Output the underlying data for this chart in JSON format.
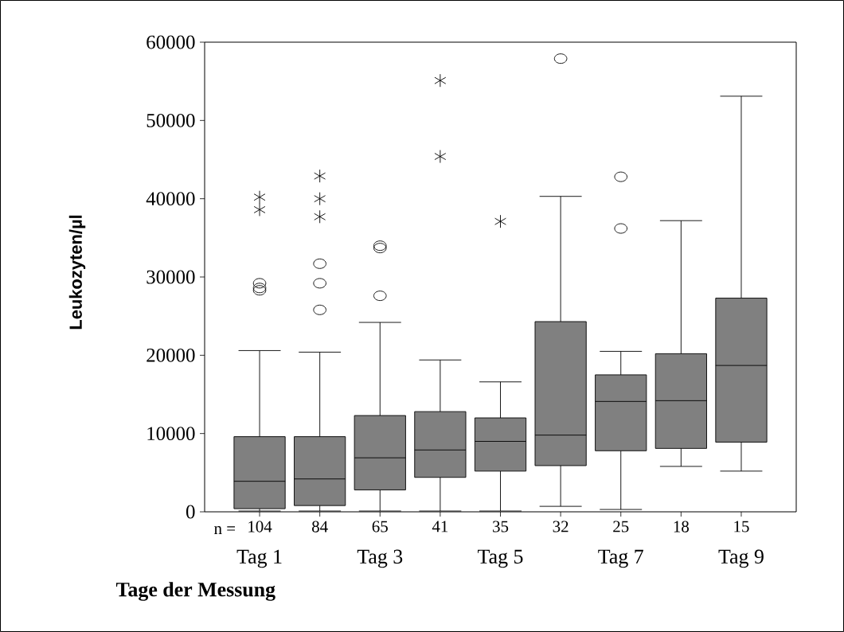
{
  "chart_data": {
    "type": "box",
    "ylabel": "Leukozyten/µl",
    "xlabel": "Tage der Messung",
    "categories": [
      "104",
      "84",
      "65",
      "41",
      "35",
      "32",
      "25",
      "18",
      "15"
    ],
    "color": "#808080",
    "marker": "circle",
    "boxes": [
      {
        "low": 100,
        "q1": 400,
        "median": 3900,
        "q3": 9600,
        "high": 20600,
        "outliers": [
          29200,
          28600,
          28300
        ]
      },
      {
        "low": 100,
        "q1": 800,
        "median": 4200,
        "q3": 9600,
        "high": 20400,
        "outliers": [
          31700,
          29200,
          25800
        ]
      },
      {
        "low": 100,
        "q1": 2800,
        "median": 6900,
        "q3": 12300,
        "high": 24200,
        "outliers": [
          34000,
          33700,
          27600
        ]
      },
      {
        "low": 100,
        "q1": 4400,
        "median": 7900,
        "q3": 12800,
        "high": 19400
      },
      {
        "low": 100,
        "q1": 5200,
        "median": 9000,
        "q3": 12000,
        "high": 16600
      },
      {
        "low": 700,
        "q1": 5900,
        "median": 9800,
        "q3": 24300,
        "high": 40300,
        "outliers": [
          57900
        ]
      },
      {
        "low": 300,
        "q1": 7800,
        "median": 14100,
        "q3": 17500,
        "high": 20500,
        "outliers": [
          42800,
          36200
        ]
      },
      {
        "low": 5800,
        "q1": 8100,
        "median": 14200,
        "q3": 20200,
        "high": 37200
      },
      {
        "low": 5200,
        "q1": 8900,
        "median": 18700,
        "q3": 27300,
        "high": 53100
      }
    ],
    "series": [
      {
        "type": "scatter",
        "marker": "cross",
        "color": "#000000",
        "x": [
          "104",
          "104",
          "84",
          "84",
          "84",
          "41",
          "41",
          "35"
        ],
        "values": [
          40200,
          38600,
          42900,
          40000,
          37700,
          55100,
          45400,
          37100
        ]
      }
    ],
    "ylim": [
      0,
      60000
    ],
    "yticks": [
      0,
      10000,
      20000,
      30000,
      40000,
      50000,
      60000
    ],
    "annotations": [
      "n =",
      "Tag 1",
      "Tag 3",
      "Tag 5",
      "Tag 7",
      "Tag 9"
    ]
  }
}
